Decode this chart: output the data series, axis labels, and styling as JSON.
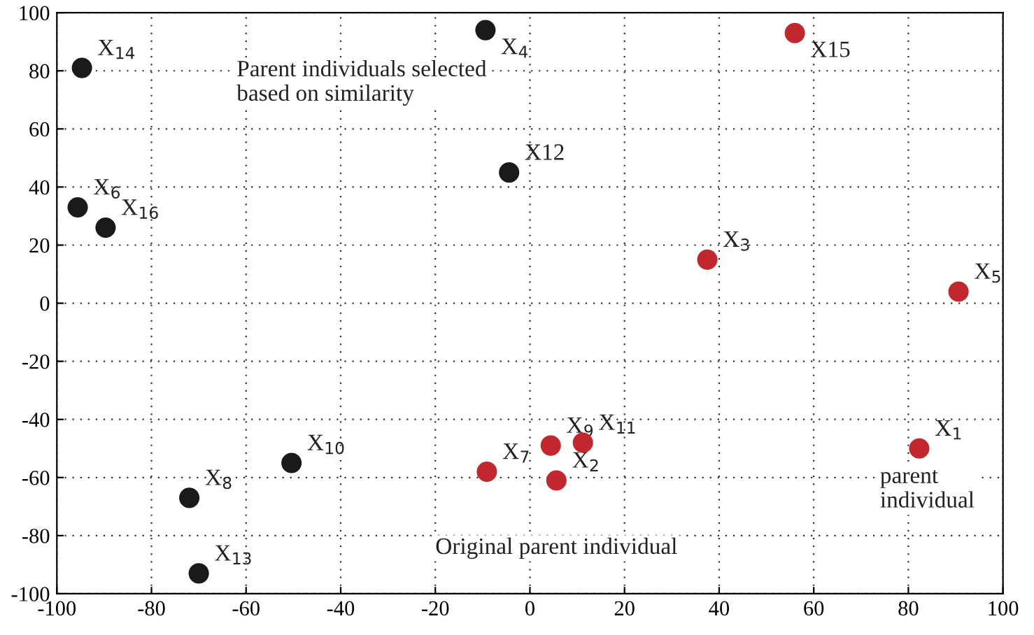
{
  "chart_data": {
    "type": "scatter",
    "series": [
      {
        "color": "#1a1a1a",
        "x": [
          -94.7,
          -9.4,
          -95.6,
          -89.7,
          -4.4,
          -50.4,
          -72,
          -70
        ],
        "values": [
          81,
          94,
          33,
          26,
          45,
          -55,
          -67,
          -93
        ]
      },
      {
        "color": "#c1272d",
        "x": [
          56,
          37.5,
          90.6,
          82.3,
          11.2,
          4.4,
          5.6,
          -9.1
        ],
        "values": [
          93,
          15,
          4,
          -50,
          -48,
          -49,
          -61,
          -58
        ]
      }
    ],
    "annotations": [
      {
        "text": "X$_{14}$",
        "x": -94.7,
        "y": 81
      },
      {
        "text": "X$_{4}$",
        "x": -9.4,
        "y": 94
      },
      {
        "text": "X$_{6}$",
        "x": -95.6,
        "y": 33
      },
      {
        "text": "X$_{16}$",
        "x": -89.7,
        "y": 26
      },
      {
        "text": "X12",
        "x": -4.4,
        "y": 45
      },
      {
        "text": "X$_{10}$",
        "x": -50.4,
        "y": -55
      },
      {
        "text": "X$_{8}$",
        "x": -72,
        "y": -67
      },
      {
        "text": "X$_{13}$",
        "x": -70,
        "y": -93
      },
      {
        "text": "X15",
        "x": 56,
        "y": 93
      },
      {
        "text": "X$_{3}$",
        "x": 37.5,
        "y": 15
      },
      {
        "text": "X$_{5}$",
        "x": 90.6,
        "y": 4
      },
      {
        "text": "X$_{1}$",
        "x": 82.3,
        "y": -50
      },
      {
        "text": "X$_{11}$",
        "x": 11.2,
        "y": -48
      },
      {
        "text": "X$_{9}$",
        "x": 4.4,
        "y": -49
      },
      {
        "text": "X$_{2}$",
        "x": 5.6,
        "y": -61
      },
      {
        "text": "X$_{7}$",
        "x": -9.1,
        "y": -58
      },
      "Parent individuals selected\nbased on similarity",
      "Original parent individual",
      "parent\nindividual"
    ],
    "xlim": [
      -100,
      100
    ],
    "ylim": [
      -100,
      100
    ],
    "xticks": [
      -100,
      -80,
      -60,
      -40,
      -20,
      0,
      20,
      40,
      60,
      80,
      100
    ],
    "yticks": [
      -100,
      -80,
      -60,
      -40,
      -20,
      0,
      20,
      40,
      60,
      80,
      100
    ],
    "grid": true,
    "marker": "circle",
    "legend": false
  }
}
